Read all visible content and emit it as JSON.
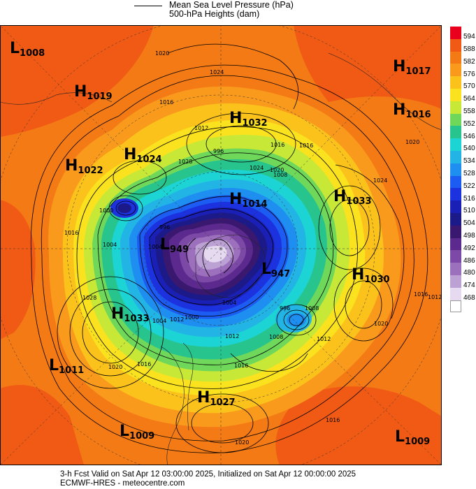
{
  "legend": {
    "line1": "Mean Sea Level Pressure (hPa)",
    "line2": "500-hPa Heights (dam)"
  },
  "colorbar": [
    {
      "label": "594",
      "color": "#e8001c"
    },
    {
      "label": "588",
      "color": "#f05a14"
    },
    {
      "label": "582",
      "color": "#f47a16"
    },
    {
      "label": "576",
      "color": "#f99a1c"
    },
    {
      "label": "570",
      "color": "#fcc21c"
    },
    {
      "label": "564",
      "color": "#fbe21e"
    },
    {
      "label": "558",
      "color": "#c8e838"
    },
    {
      "label": "552",
      "color": "#6fd85a"
    },
    {
      "label": "546",
      "color": "#28c48e"
    },
    {
      "label": "540",
      "color": "#1cd4d4"
    },
    {
      "label": "534",
      "color": "#23b4e6"
    },
    {
      "label": "528",
      "color": "#1e8ef0"
    },
    {
      "label": "522",
      "color": "#1c5cf2"
    },
    {
      "label": "516",
      "color": "#1c32de"
    },
    {
      "label": "510",
      "color": "#1a20b6"
    },
    {
      "label": "504",
      "color": "#1c1a88"
    },
    {
      "label": "498",
      "color": "#3a1870"
    },
    {
      "label": "492",
      "color": "#5c2a8e"
    },
    {
      "label": "486",
      "color": "#7c4aa6"
    },
    {
      "label": "480",
      "color": "#9c70bc"
    },
    {
      "label": "474",
      "color": "#bca2d4"
    },
    {
      "label": "468",
      "color": "#e6daf0"
    },
    {
      "label": "",
      "color": "#ffffff"
    }
  ],
  "pressure_centers": [
    {
      "type": "L",
      "value": "1008"
    },
    {
      "type": "H",
      "value": "1019"
    },
    {
      "type": "H",
      "value": "1017"
    },
    {
      "type": "H",
      "value": "1016"
    },
    {
      "type": "H",
      "value": "1032"
    },
    {
      "type": "H",
      "value": "1024"
    },
    {
      "type": "H",
      "value": "1022"
    },
    {
      "type": "H",
      "value": "1014"
    },
    {
      "type": "H",
      "value": "1033"
    },
    {
      "type": "L",
      "value": "949"
    },
    {
      "type": "L",
      "value": "947"
    },
    {
      "type": "H",
      "value": "1030"
    },
    {
      "type": "H",
      "value": "1033"
    },
    {
      "type": "L",
      "value": "1011"
    },
    {
      "type": "H",
      "value": "1027"
    },
    {
      "type": "L",
      "value": "1009"
    },
    {
      "type": "L",
      "value": "1009"
    }
  ],
  "isobar_labels": [
    "1020",
    "1024",
    "1016",
    "1012",
    "996",
    "1028",
    "1016",
    "1016",
    "1020",
    "1024",
    "1008",
    "1000",
    "1004",
    "1028",
    "1020",
    "1024",
    "1020",
    "1016",
    "1012",
    "1016",
    "1020",
    "1004",
    "996",
    "1016",
    "1012",
    "1000",
    "1008",
    "1012",
    "1008",
    "1016",
    "1004",
    "996",
    "1004",
    "1016",
    "1012",
    "1020"
  ],
  "footer": {
    "line1": "3-h Fcst Valid on Sat Apr 12 03:00:00 2025, Initialized on Sat Apr 12 00:00:00 2025",
    "line2": "ECMWF-HRES  - meteocentre.com"
  }
}
